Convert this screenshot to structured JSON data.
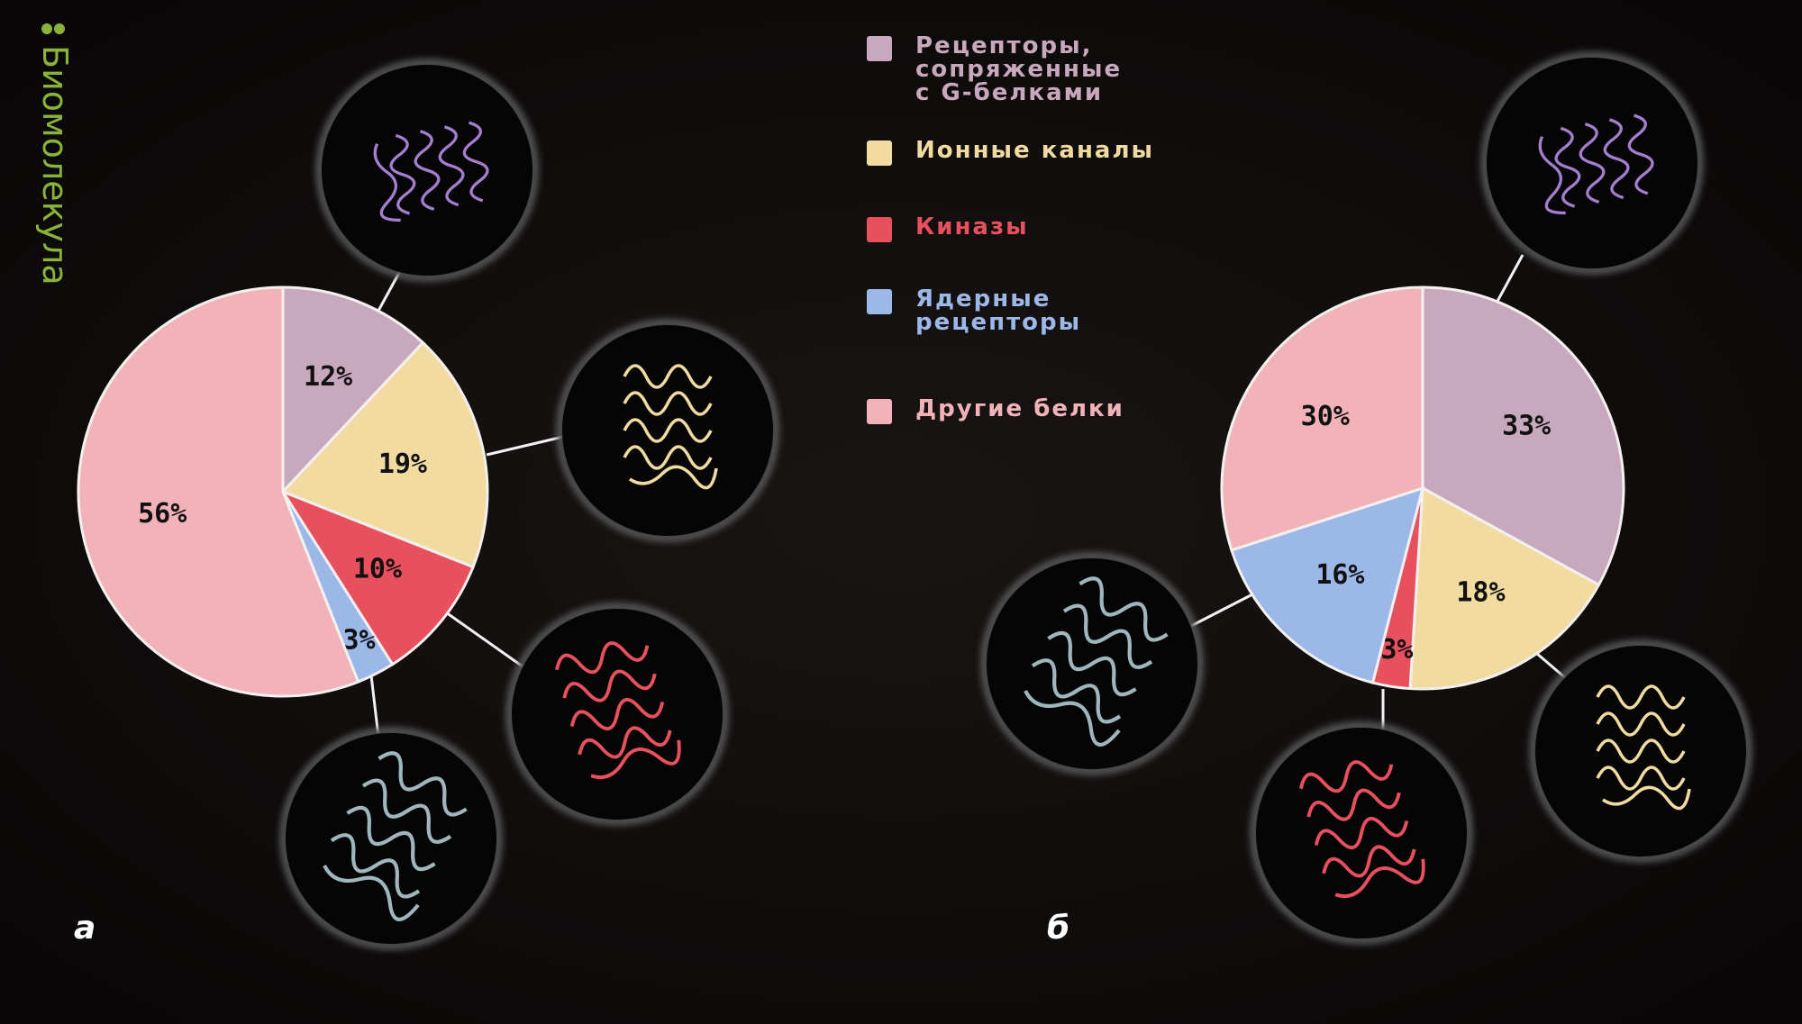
{
  "brand": "Биомолекула",
  "legend": {
    "labels": [
      "Рецепторы, сопряженные с G-белками",
      "Ионные каналы",
      "Киназы",
      "Ядерные рецепторы",
      "Другие белки"
    ],
    "colors": [
      "#c8a8bc",
      "#f2dba0",
      "#e8505e",
      "#9bb8e8",
      "#f1b3b8"
    ]
  },
  "chart_data": [
    {
      "type": "pie",
      "label": "а",
      "values": [
        12,
        19,
        10,
        3,
        56
      ],
      "value_labels": [
        "12%",
        "19%",
        "10%",
        "3%",
        "56%"
      ]
    },
    {
      "type": "pie",
      "label": "б",
      "values": [
        33,
        18,
        3,
        16,
        30
      ],
      "value_labels": [
        "33%",
        "18%",
        "3%",
        "16%",
        "30%"
      ]
    }
  ]
}
